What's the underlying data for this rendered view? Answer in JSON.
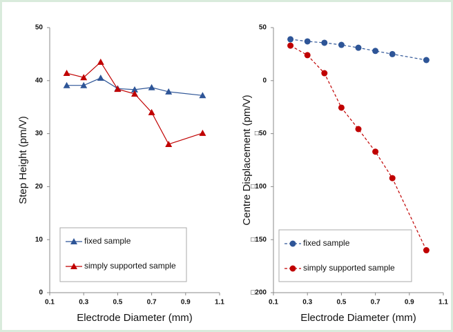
{
  "chart_data": [
    {
      "type": "line",
      "xlabel": "Electrode Diameter (mm)",
      "ylabel": "Step Height (pm/V)",
      "xlim": [
        0.1,
        1.1
      ],
      "xticks": [
        0.1,
        0.3,
        0.5,
        0.7,
        0.9,
        1.1
      ],
      "ylim": [
        0,
        50
      ],
      "yticks": [
        0,
        10,
        20,
        30,
        40,
        50
      ],
      "legend": "lower left",
      "series": [
        {
          "name": "fixed sample",
          "color": "#2e5597",
          "marker": "triangle",
          "dash": false,
          "x": [
            0.2,
            0.3,
            0.4,
            0.5,
            0.6,
            0.7,
            0.8,
            1.0
          ],
          "values": [
            39.1,
            39.1,
            40.5,
            38.5,
            38.3,
            38.7,
            37.9,
            37.2
          ]
        },
        {
          "name": "simply supported sample",
          "color": "#c00000",
          "marker": "triangle",
          "dash": false,
          "x": [
            0.2,
            0.3,
            0.4,
            0.5,
            0.6,
            0.7,
            0.8,
            1.0
          ],
          "values": [
            41.4,
            40.6,
            43.5,
            38.4,
            37.5,
            34.0,
            28.0,
            30.1
          ]
        }
      ]
    },
    {
      "type": "line",
      "xlabel": "Electrode Diameter (mm)",
      "ylabel": "Centre Displacement (pm/V)",
      "xlim": [
        0.1,
        1.1
      ],
      "xticks": [
        0.1,
        0.3,
        0.5,
        0.7,
        0.9,
        1.1
      ],
      "ylim": [
        -200,
        50
      ],
      "yticks": [
        50,
        0,
        {
          "value": -50,
          "label": "□50"
        },
        {
          "value": -100,
          "label": "□100"
        },
        {
          "value": -150,
          "label": "□150"
        },
        {
          "value": -200,
          "label": "□200"
        }
      ],
      "legend": "lower left",
      "series": [
        {
          "name": "fixed sample",
          "color": "#2e5597",
          "marker": "circle",
          "dash": true,
          "x": [
            0.2,
            0.3,
            0.4,
            0.5,
            0.6,
            0.7,
            0.8,
            1.0
          ],
          "values": [
            39,
            37,
            35.7,
            33.7,
            31,
            28,
            25,
            19.4
          ]
        },
        {
          "name": "simply supported sample",
          "color": "#c00000",
          "marker": "circle",
          "dash": true,
          "x": [
            0.2,
            0.3,
            0.4,
            0.5,
            0.6,
            0.7,
            0.8,
            1.0
          ],
          "values": [
            33,
            24,
            7,
            -25.5,
            -45.7,
            -67,
            -92,
            -160
          ]
        }
      ]
    }
  ]
}
